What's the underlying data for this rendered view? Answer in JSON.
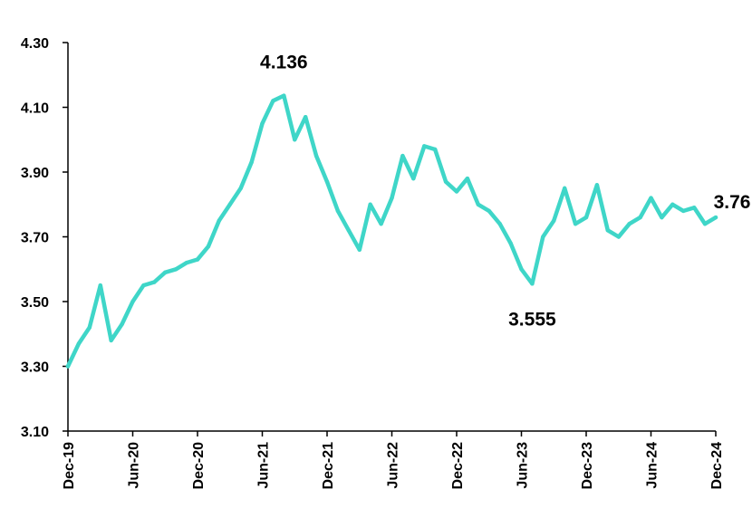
{
  "chart_data": {
    "type": "line",
    "title": "",
    "xlabel": "",
    "ylabel": "",
    "ylim": [
      3.1,
      4.3
    ],
    "yticks": [
      "4.30",
      "4.10",
      "3.90",
      "3.70",
      "3.50",
      "3.30",
      "3.10"
    ],
    "xtick_labels": [
      "Dec-19",
      "Jun-20",
      "Dec-20",
      "Jun-21",
      "Dec-21",
      "Jun-22",
      "Dec-22",
      "Jun-23",
      "Dec-23",
      "Jun-24",
      "Dec-24"
    ],
    "grid": false,
    "legend": "none",
    "line_color": "#3FD6C8",
    "series": [
      {
        "x": [
          "Dec-19",
          "Jan-20",
          "Feb-20",
          "Mar-20",
          "Apr-20",
          "May-20",
          "Jun-20",
          "Jul-20",
          "Aug-20",
          "Sep-20",
          "Oct-20",
          "Nov-20",
          "Dec-20",
          "Jan-21",
          "Feb-21",
          "Mar-21",
          "Apr-21",
          "May-21",
          "Jun-21",
          "Jul-21",
          "Aug-21",
          "Sep-21",
          "Oct-21",
          "Nov-21",
          "Dec-21",
          "Jan-22",
          "Feb-22",
          "Mar-22",
          "Apr-22",
          "May-22",
          "Jun-22",
          "Jul-22",
          "Aug-22",
          "Sep-22",
          "Oct-22",
          "Nov-22",
          "Dec-22",
          "Jan-23",
          "Feb-23",
          "Mar-23",
          "Apr-23",
          "May-23",
          "Jun-23",
          "Jul-23",
          "Aug-23",
          "Sep-23",
          "Oct-23",
          "Nov-23",
          "Dec-23",
          "Jan-24",
          "Feb-24",
          "Mar-24",
          "Apr-24",
          "May-24",
          "Jun-24",
          "Jul-24",
          "Aug-24",
          "Sep-24",
          "Oct-24",
          "Nov-24",
          "Dec-24"
        ],
        "values": [
          3.3,
          3.37,
          3.42,
          3.55,
          3.38,
          3.43,
          3.5,
          3.55,
          3.56,
          3.59,
          3.6,
          3.62,
          3.63,
          3.67,
          3.75,
          3.8,
          3.85,
          3.93,
          4.05,
          4.12,
          4.136,
          4.0,
          4.07,
          3.95,
          3.87,
          3.78,
          3.72,
          3.66,
          3.8,
          3.74,
          3.82,
          3.95,
          3.88,
          3.98,
          3.97,
          3.87,
          3.84,
          3.88,
          3.8,
          3.78,
          3.74,
          3.68,
          3.6,
          3.555,
          3.7,
          3.75,
          3.85,
          3.74,
          3.76,
          3.86,
          3.72,
          3.7,
          3.74,
          3.76,
          3.82,
          3.76,
          3.8,
          3.78,
          3.79,
          3.74,
          3.76
        ]
      }
    ],
    "annotations": [
      {
        "text": "4.136",
        "x": "Aug-21",
        "y": 4.136
      },
      {
        "text": "3.555",
        "x": "Jul-23",
        "y": 3.555
      },
      {
        "text": "3.76",
        "x": "Dec-24",
        "y": 3.76
      }
    ]
  }
}
